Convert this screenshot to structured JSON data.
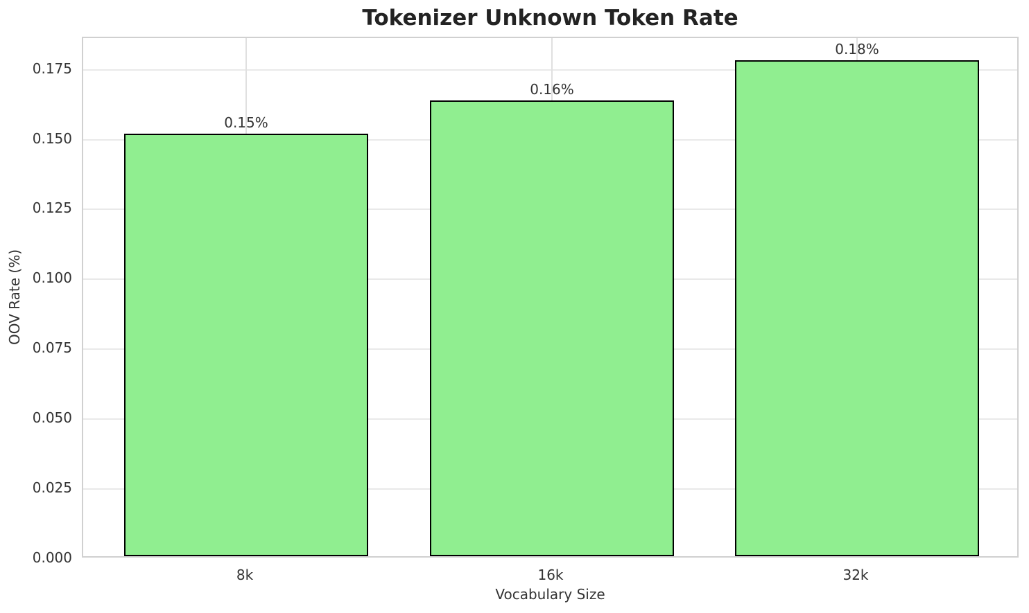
{
  "chart_data": {
    "type": "bar",
    "title": "Tokenizer Unknown Token Rate",
    "xlabel": "Vocabulary Size",
    "ylabel": "OOV Rate (%)",
    "categories": [
      "8k",
      "16k",
      "32k"
    ],
    "values": [
      0.151,
      0.163,
      0.1775
    ],
    "bar_labels": [
      "0.15%",
      "0.16%",
      "0.18%"
    ],
    "ytick_labels": [
      "0.000",
      "0.025",
      "0.050",
      "0.075",
      "0.100",
      "0.125",
      "0.150",
      "0.175"
    ],
    "ylim": [
      0,
      0.1863
    ],
    "grid": "both",
    "legend_position": "none",
    "bar_width_frac": 0.8,
    "colors": {
      "bar_fill": "#90EE90",
      "bar_edge": "#000000",
      "grid_line_h": "#e9e9e9",
      "grid_line_v": "#e0e0e0",
      "spine": "#d0d0d0",
      "title_text": "#232323",
      "tick_text": "#333333",
      "background": "#ffffff"
    }
  }
}
